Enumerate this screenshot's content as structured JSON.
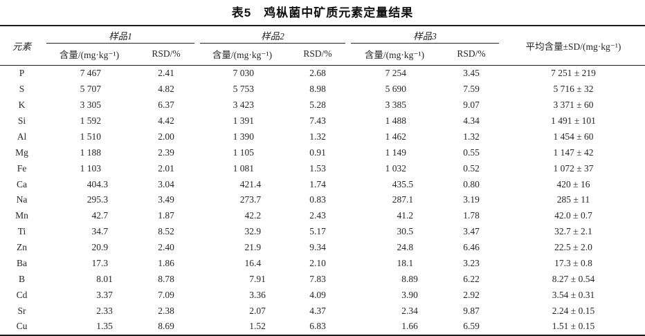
{
  "title": "表5　鸡枞菌中矿质元素定量结果",
  "colors": {
    "background": "#ffffff",
    "text": "#262626",
    "rule": "#1b1b1b"
  },
  "table": {
    "headers": {
      "element": "元素",
      "sample1": "样品1",
      "sample2": "样品2",
      "sample3": "样品3",
      "content": "含量/(mg·kg⁻¹)",
      "rsd": "RSD/%",
      "mean": "平均含量±SD/(mg·kg⁻¹)"
    },
    "rows": [
      {
        "element": "P",
        "s1": [
          "7 467",
          "2.41"
        ],
        "s2": [
          "7 030",
          "2.68"
        ],
        "s3": [
          "7 254",
          "3.45"
        ],
        "mean": "7 251±219"
      },
      {
        "element": "S",
        "s1": [
          "5 707",
          "4.82"
        ],
        "s2": [
          "5 753",
          "8.98"
        ],
        "s3": [
          "5 690",
          "7.59"
        ],
        "mean": "5 716±32"
      },
      {
        "element": "K",
        "s1": [
          "3 305",
          "6.37"
        ],
        "s2": [
          "3 423",
          "5.28"
        ],
        "s3": [
          "3 385",
          "9.07"
        ],
        "mean": "3 371±60"
      },
      {
        "element": "Si",
        "s1": [
          "1 592",
          "4.42"
        ],
        "s2": [
          "1 391",
          "7.43"
        ],
        "s3": [
          "1 488",
          "4.34"
        ],
        "mean": "1 491±101"
      },
      {
        "element": "Al",
        "s1": [
          "1 510",
          "2.00"
        ],
        "s2": [
          "1 390",
          "1.32"
        ],
        "s3": [
          "1 462",
          "1.32"
        ],
        "mean": "1 454±60"
      },
      {
        "element": "Mg",
        "s1": [
          "1 188",
          "2.39"
        ],
        "s2": [
          "1 105",
          "0.91"
        ],
        "s3": [
          "1 149",
          "0.55"
        ],
        "mean": "1 147±42"
      },
      {
        "element": "Fe",
        "s1": [
          "1 103",
          "2.01"
        ],
        "s2": [
          "1 081",
          "1.53"
        ],
        "s3": [
          "1 032",
          "0.52"
        ],
        "mean": "1 072±37"
      },
      {
        "element": "Ca",
        "s1": [
          "404.3",
          "3.04"
        ],
        "s2": [
          "421.4",
          "1.74"
        ],
        "s3": [
          "435.5",
          "0.80"
        ],
        "mean": "420±16"
      },
      {
        "element": "Na",
        "s1": [
          "295.3",
          "3.49"
        ],
        "s2": [
          "273.7",
          "0.83"
        ],
        "s3": [
          "287.1",
          "3.19"
        ],
        "mean": "285±11"
      },
      {
        "element": "Mn",
        "s1": [
          "42.7",
          "1.87"
        ],
        "s2": [
          "42.2",
          "2.43"
        ],
        "s3": [
          "41.2",
          "1.78"
        ],
        "mean": "42.0±0.7"
      },
      {
        "element": "Ti",
        "s1": [
          "34.7",
          "8.52"
        ],
        "s2": [
          "32.9",
          "5.17"
        ],
        "s3": [
          "30.5",
          "3.47"
        ],
        "mean": "32.7±2.1"
      },
      {
        "element": "Zn",
        "s1": [
          "20.9",
          "2.40"
        ],
        "s2": [
          "21.9",
          "9.34"
        ],
        "s3": [
          "24.8",
          "6.46"
        ],
        "mean": "22.5±2.0"
      },
      {
        "element": "Ba",
        "s1": [
          "17.3",
          "1.86"
        ],
        "s2": [
          "16.4",
          "2.10"
        ],
        "s3": [
          "18.1",
          "3.23"
        ],
        "mean": "17.3±0.8"
      },
      {
        "element": "B",
        "s1": [
          "8.01",
          "8.78"
        ],
        "s2": [
          "7.91",
          "7.83"
        ],
        "s3": [
          "8.89",
          "6.22"
        ],
        "mean": "8.27±0.54"
      },
      {
        "element": "Cd",
        "s1": [
          "3.37",
          "7.09"
        ],
        "s2": [
          "3.36",
          "4.09"
        ],
        "s3": [
          "3.90",
          "2.92"
        ],
        "mean": "3.54±0.31"
      },
      {
        "element": "Sr",
        "s1": [
          "2.33",
          "2.38"
        ],
        "s2": [
          "2.07",
          "4.37"
        ],
        "s3": [
          "2.34",
          "9.87"
        ],
        "mean": "2.24±0.15"
      },
      {
        "element": "Cu",
        "s1": [
          "1.35",
          "8.69"
        ],
        "s2": [
          "1.52",
          "6.83"
        ],
        "s3": [
          "1.66",
          "6.59"
        ],
        "mean": "1.51±0.15"
      }
    ]
  }
}
